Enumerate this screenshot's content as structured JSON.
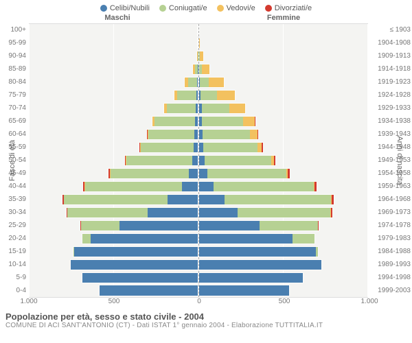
{
  "legend": [
    {
      "label": "Celibi/Nubili",
      "color": "#4a7fb0"
    },
    {
      "label": "Coniugati/e",
      "color": "#b6d193"
    },
    {
      "label": "Vedovi/e",
      "color": "#f3c15f"
    },
    {
      "label": "Divorziati/e",
      "color": "#d33a2f"
    }
  ],
  "headers": {
    "male": "Maschi",
    "female": "Femmine"
  },
  "axis_labels": {
    "left": "Fasce di età",
    "right": "Anni di nascita"
  },
  "title": "Popolazione per età, sesso e stato civile - 2004",
  "subtitle": "COMUNE DI ACI SANT'ANTONIO (CT) - Dati ISTAT 1° gennaio 2004 - Elaborazione TUTTITALIA.IT",
  "plot": {
    "bg": "#f4f4f2",
    "grid_color": "#ffffff",
    "border_color": "#dddddd",
    "border_width": 1,
    "centerline_color": "#aaaaaa"
  },
  "xaxis": {
    "max": 1000,
    "ticks": [
      1000,
      500,
      0,
      500,
      1000
    ],
    "tick_labels": [
      "1.000",
      "500",
      "0",
      "500",
      "1.000"
    ]
  },
  "rows": [
    {
      "age": "100+",
      "birth": "≤ 1903",
      "m": [
        0,
        0,
        1,
        0
      ],
      "f": [
        0,
        0,
        3,
        0
      ]
    },
    {
      "age": "95-99",
      "birth": "1904-1908",
      "m": [
        0,
        0,
        3,
        0
      ],
      "f": [
        0,
        0,
        10,
        0
      ]
    },
    {
      "age": "90-94",
      "birth": "1909-1913",
      "m": [
        0,
        3,
        10,
        0
      ],
      "f": [
        0,
        5,
        28,
        0
      ]
    },
    {
      "age": "85-89",
      "birth": "1914-1918",
      "m": [
        2,
        18,
        15,
        0
      ],
      "f": [
        2,
        15,
        52,
        0
      ]
    },
    {
      "age": "80-84",
      "birth": "1919-1923",
      "m": [
        5,
        60,
        20,
        0
      ],
      "f": [
        5,
        55,
        95,
        0
      ]
    },
    {
      "age": "75-79",
      "birth": "1924-1928",
      "m": [
        8,
        120,
        20,
        0
      ],
      "f": [
        10,
        100,
        110,
        0
      ]
    },
    {
      "age": "70-74",
      "birth": "1929-1933",
      "m": [
        12,
        180,
        15,
        0
      ],
      "f": [
        15,
        170,
        95,
        0
      ]
    },
    {
      "age": "65-69",
      "birth": "1934-1938",
      "m": [
        15,
        250,
        10,
        2
      ],
      "f": [
        18,
        250,
        70,
        3
      ]
    },
    {
      "age": "60-64",
      "birth": "1939-1943",
      "m": [
        20,
        280,
        6,
        3
      ],
      "f": [
        22,
        285,
        45,
        4
      ]
    },
    {
      "age": "55-59",
      "birth": "1944-1948",
      "m": [
        25,
        320,
        4,
        5
      ],
      "f": [
        25,
        330,
        25,
        6
      ]
    },
    {
      "age": "50-54",
      "birth": "1949-1953",
      "m": [
        35,
        395,
        3,
        7
      ],
      "f": [
        35,
        400,
        15,
        8
      ]
    },
    {
      "age": "45-49",
      "birth": "1954-1958",
      "m": [
        55,
        470,
        2,
        8
      ],
      "f": [
        50,
        475,
        8,
        10
      ]
    },
    {
      "age": "40-44",
      "birth": "1959-1963",
      "m": [
        95,
        580,
        2,
        10
      ],
      "f": [
        85,
        600,
        5,
        12
      ]
    },
    {
      "age": "35-39",
      "birth": "1964-1968",
      "m": [
        180,
        620,
        1,
        10
      ],
      "f": [
        150,
        640,
        3,
        12
      ]
    },
    {
      "age": "30-34",
      "birth": "1969-1973",
      "m": [
        300,
        480,
        0,
        6
      ],
      "f": [
        230,
        555,
        2,
        8
      ]
    },
    {
      "age": "25-29",
      "birth": "1974-1978",
      "m": [
        470,
        230,
        0,
        2
      ],
      "f": [
        360,
        350,
        0,
        4
      ]
    },
    {
      "age": "20-24",
      "birth": "1979-1983",
      "m": [
        640,
        50,
        0,
        0
      ],
      "f": [
        560,
        130,
        0,
        0
      ]
    },
    {
      "age": "15-19",
      "birth": "1984-1988",
      "m": [
        740,
        3,
        0,
        0
      ],
      "f": [
        700,
        12,
        0,
        0
      ]
    },
    {
      "age": "10-14",
      "birth": "1989-1993",
      "m": [
        760,
        0,
        0,
        0
      ],
      "f": [
        730,
        0,
        0,
        0
      ]
    },
    {
      "age": "5-9",
      "birth": "1994-1998",
      "m": [
        690,
        0,
        0,
        0
      ],
      "f": [
        620,
        0,
        0,
        0
      ]
    },
    {
      "age": "0-4",
      "birth": "1999-2003",
      "m": [
        590,
        0,
        0,
        0
      ],
      "f": [
        540,
        0,
        0,
        0
      ]
    }
  ]
}
